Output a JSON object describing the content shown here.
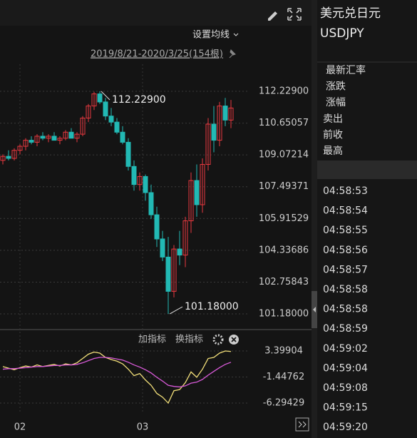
{
  "toolbar": {
    "ma_setting": "设置均线",
    "range": "2019/8/21-2020/3/25(154根)"
  },
  "chart_data": {
    "type": "candlestick",
    "ylim": [
      100.65,
      113.22
    ],
    "yticks": [
      {
        "value": 112.229,
        "label": "112.22900"
      },
      {
        "value": 110.65057,
        "label": "110.65057"
      },
      {
        "value": 109.07214,
        "label": "109.07214"
      },
      {
        "value": 107.49371,
        "label": "107.49371"
      },
      {
        "value": 105.91529,
        "label": "105.91529"
      },
      {
        "value": 104.33686,
        "label": "104.33686"
      },
      {
        "value": 102.75843,
        "label": "102.75843"
      },
      {
        "value": 101.18,
        "label": "101.18000"
      }
    ],
    "up_color": "#e8393f",
    "down_color": "#22b9b4",
    "grid": true,
    "candles": [
      {
        "open": 108.8,
        "high": 109.1,
        "low": 108.6,
        "close": 109.0
      },
      {
        "open": 109.0,
        "high": 109.3,
        "low": 108.8,
        "close": 108.9
      },
      {
        "open": 108.9,
        "high": 109.4,
        "low": 108.8,
        "close": 109.3
      },
      {
        "open": 109.3,
        "high": 109.6,
        "low": 109.1,
        "close": 109.5
      },
      {
        "open": 109.5,
        "high": 109.9,
        "low": 109.3,
        "close": 109.8
      },
      {
        "open": 109.8,
        "high": 110.0,
        "low": 109.6,
        "close": 109.7
      },
      {
        "open": 109.7,
        "high": 110.1,
        "low": 109.5,
        "close": 110.0
      },
      {
        "open": 110.0,
        "high": 110.2,
        "low": 109.8,
        "close": 109.9
      },
      {
        "open": 109.9,
        "high": 110.1,
        "low": 109.7,
        "close": 110.0
      },
      {
        "open": 110.0,
        "high": 110.2,
        "low": 109.8,
        "close": 109.8
      },
      {
        "open": 109.8,
        "high": 110.0,
        "low": 109.6,
        "close": 109.9
      },
      {
        "open": 109.9,
        "high": 110.3,
        "low": 109.8,
        "close": 110.2
      },
      {
        "open": 110.2,
        "high": 110.4,
        "low": 109.9,
        "close": 109.9
      },
      {
        "open": 109.9,
        "high": 110.2,
        "low": 109.7,
        "close": 110.1
      },
      {
        "open": 110.1,
        "high": 111.0,
        "low": 110.0,
        "close": 110.9
      },
      {
        "open": 110.9,
        "high": 111.6,
        "low": 110.7,
        "close": 111.5
      },
      {
        "open": 111.5,
        "high": 112.2,
        "low": 111.3,
        "close": 112.1
      },
      {
        "open": 112.1,
        "high": 112.229,
        "low": 111.6,
        "close": 111.7
      },
      {
        "open": 111.7,
        "high": 111.9,
        "low": 110.8,
        "close": 111.0
      },
      {
        "open": 111.0,
        "high": 111.4,
        "low": 110.5,
        "close": 110.7
      },
      {
        "open": 110.7,
        "high": 110.9,
        "low": 110.1,
        "close": 110.2
      },
      {
        "open": 110.2,
        "high": 110.5,
        "low": 109.6,
        "close": 109.7
      },
      {
        "open": 109.7,
        "high": 109.9,
        "low": 108.3,
        "close": 108.5
      },
      {
        "open": 108.5,
        "high": 108.8,
        "low": 107.3,
        "close": 107.6
      },
      {
        "open": 107.6,
        "high": 108.2,
        "low": 107.3,
        "close": 108.0
      },
      {
        "open": 108.0,
        "high": 108.1,
        "low": 106.8,
        "close": 107.2
      },
      {
        "open": 107.2,
        "high": 107.6,
        "low": 105.9,
        "close": 106.1
      },
      {
        "open": 106.1,
        "high": 106.5,
        "low": 104.5,
        "close": 104.9
      },
      {
        "open": 104.9,
        "high": 105.3,
        "low": 103.8,
        "close": 104.0
      },
      {
        "open": 104.0,
        "high": 105.0,
        "low": 101.18,
        "close": 102.3
      },
      {
        "open": 102.3,
        "high": 104.6,
        "low": 102.0,
        "close": 104.4
      },
      {
        "open": 104.4,
        "high": 105.3,
        "low": 103.6,
        "close": 104.1
      },
      {
        "open": 104.1,
        "high": 106.0,
        "low": 103.5,
        "close": 105.8
      },
      {
        "open": 105.8,
        "high": 108.2,
        "low": 105.2,
        "close": 107.8
      },
      {
        "open": 107.8,
        "high": 108.6,
        "low": 106.0,
        "close": 106.6
      },
      {
        "open": 106.6,
        "high": 108.9,
        "low": 106.2,
        "close": 108.6
      },
      {
        "open": 108.6,
        "high": 110.9,
        "low": 108.3,
        "close": 110.6
      },
      {
        "open": 110.6,
        "high": 111.5,
        "low": 109.2,
        "close": 109.8
      },
      {
        "open": 109.8,
        "high": 111.7,
        "low": 109.5,
        "close": 111.5
      },
      {
        "open": 111.5,
        "high": 111.9,
        "low": 110.5,
        "close": 110.8
      },
      {
        "open": 110.8,
        "high": 111.8,
        "low": 110.4,
        "close": 111.4
      }
    ],
    "annotations": [
      {
        "value": 112.229,
        "label": "112.22900"
      },
      {
        "value": 101.18,
        "label": "101.18000"
      }
    ],
    "x_labels": [
      "02",
      "03"
    ],
    "indicator": {
      "add": "加指标",
      "switch": "换指标",
      "ylim": [
        -8.29,
        6.32
      ],
      "yticks": [
        3.39904,
        -1.44762,
        -6.29429
      ],
      "series": [
        {
          "color": "#f3e07a",
          "values": [
            0.5,
            0.2,
            -0.1,
            0.3,
            0.6,
            0.4,
            0.8,
            0.5,
            0.7,
            0.9,
            0.6,
            1.0,
            0.8,
            1.2,
            2.0,
            2.8,
            3.2,
            3.0,
            2.2,
            1.8,
            1.5,
            1.0,
            0.0,
            -1.2,
            -0.8,
            -2.0,
            -3.0,
            -4.5,
            -5.2,
            -6.3,
            -4.0,
            -3.8,
            -2.5,
            -0.5,
            -1.5,
            0.0,
            2.0,
            2.2,
            3.0,
            3.4,
            3.3
          ]
        },
        {
          "color": "#d95ad9",
          "values": [
            0.0,
            0.1,
            0.1,
            0.2,
            0.3,
            0.4,
            0.5,
            0.5,
            0.6,
            0.7,
            0.7,
            0.8,
            0.8,
            0.9,
            1.2,
            1.6,
            2.0,
            2.2,
            2.2,
            2.1,
            1.9,
            1.7,
            1.3,
            0.8,
            0.4,
            -0.1,
            -0.7,
            -1.5,
            -2.2,
            -3.0,
            -3.2,
            -3.3,
            -3.1,
            -2.6,
            -2.4,
            -1.9,
            -1.1,
            -0.4,
            0.3,
            0.9,
            1.3
          ]
        }
      ]
    }
  },
  "panel": {
    "title": "美元兑日元",
    "symbol": "USDJPY",
    "fields": [
      "最新汇率",
      "涨跌",
      "涨幅",
      "卖出",
      "前收",
      "最高"
    ],
    "times": [
      "04:58:53",
      "04:58:54",
      "04:58:55",
      "04:58:56",
      "04:58:57",
      "04:58:58",
      "04:58:58",
      "04:58:59",
      "04:59:02",
      "04:59:04",
      "04:59:08",
      "04:59:15",
      "04:59:20"
    ]
  }
}
